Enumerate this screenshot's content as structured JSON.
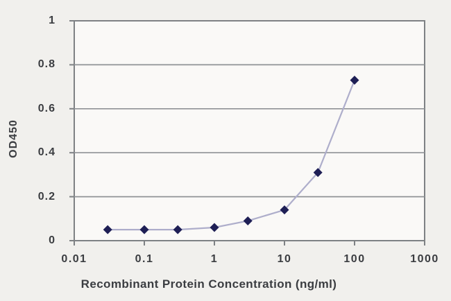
{
  "figure": {
    "background_color": "#f1f0ed",
    "plot_background_color": "#faf9f7",
    "border_color": "#7e8184",
    "grid_color": "#8f9296",
    "text_color": "#3b3d41"
  },
  "chart_data": {
    "type": "line",
    "title": "",
    "xlabel": "Recombinant Protein Concentration (ng/ml)",
    "ylabel": "OD450",
    "x_scale": "log",
    "xlim": [
      0.01,
      1000
    ],
    "ylim": [
      0,
      1
    ],
    "x_ticks": [
      0.01,
      0.1,
      1,
      10,
      100,
      1000
    ],
    "x_tick_labels": [
      "0.01",
      "0.1",
      "1",
      "10",
      "100",
      "1000"
    ],
    "y_ticks": [
      0,
      0.2,
      0.4,
      0.6,
      0.8,
      1
    ],
    "y_tick_labels": [
      "0",
      "0.2",
      "0.4",
      "0.6",
      "0.8",
      "1"
    ],
    "grid": "horizontal",
    "legend": "none",
    "series": [
      {
        "name": "OD450",
        "x": [
          0.03,
          0.1,
          0.3,
          1,
          3,
          10,
          30,
          100
        ],
        "y": [
          0.05,
          0.05,
          0.05,
          0.06,
          0.09,
          0.14,
          0.31,
          0.73
        ],
        "line_color": "#aeaecb",
        "marker": "diamond",
        "marker_color": "#1e1f55"
      }
    ]
  }
}
